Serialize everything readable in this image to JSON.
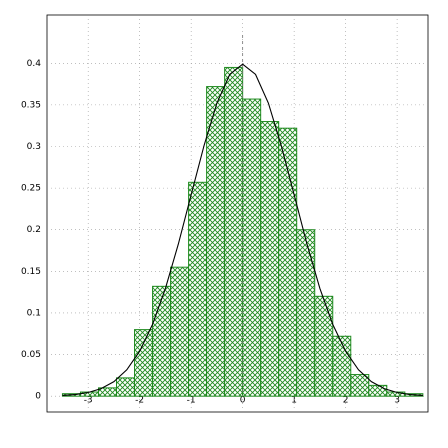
{
  "chart_data": {
    "type": "histogram",
    "bins": [
      -3.5,
      -3.15,
      -2.8,
      -2.45,
      -2.1,
      -1.75,
      -1.4,
      -1.05,
      -0.7,
      -0.35,
      0,
      0.35,
      0.7,
      1.05,
      1.4,
      1.75,
      2.1,
      2.45,
      2.8,
      3.15,
      3.5
    ],
    "values": [
      0.003,
      0.005,
      0.01,
      0.022,
      0.08,
      0.132,
      0.155,
      0.257,
      0.372,
      0.395,
      0.357,
      0.33,
      0.322,
      0.2,
      0.12,
      0.072,
      0.026,
      0.013,
      0.005,
      0.003
    ],
    "color": "#1f8a1f",
    "curve": {
      "color": "#000000",
      "x": [
        -3.5,
        -3.25,
        -3,
        -2.75,
        -2.5,
        -2.25,
        -2,
        -1.75,
        -1.5,
        -1.25,
        -1,
        -0.75,
        -0.5,
        -0.25,
        0,
        0.25,
        0.5,
        0.75,
        1,
        1.25,
        1.5,
        1.75,
        2,
        2.25,
        2.5,
        2.75,
        3,
        3.25,
        3.5
      ],
      "y": [
        0.0009,
        0.002,
        0.0044,
        0.0091,
        0.0175,
        0.0317,
        0.054,
        0.0863,
        0.1295,
        0.1826,
        0.242,
        0.3011,
        0.3521,
        0.3867,
        0.3989,
        0.3867,
        0.3521,
        0.3011,
        0.242,
        0.1826,
        0.1295,
        0.0863,
        0.054,
        0.0317,
        0.0175,
        0.0091,
        0.0044,
        0.002,
        0.0009
      ]
    },
    "vline": 0,
    "xlim": [
      -3.8,
      3.6
    ],
    "ylim": [
      -0.019,
      0.458
    ],
    "xticks": [
      -3,
      -2,
      -1,
      0,
      1,
      2,
      3
    ],
    "yticks": [
      0,
      0.05,
      0.1,
      0.15,
      0.2,
      0.25,
      0.3,
      0.35,
      0.4
    ],
    "grid": true
  }
}
